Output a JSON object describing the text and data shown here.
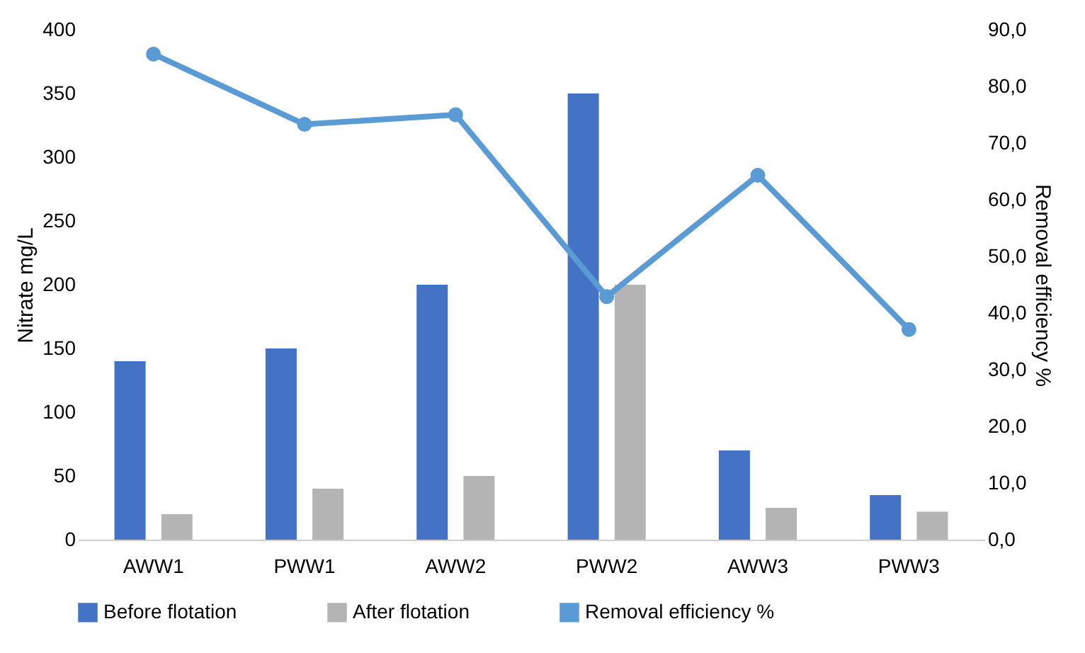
{
  "chart_data": {
    "type": "bar",
    "categories": [
      "AWW1",
      "PWW1",
      "AWW2",
      "PWW2",
      "AWW3",
      "PWW3"
    ],
    "ylabel": "Nitrate mg/L",
    "y2label": "Removal efficiency %",
    "ylim": [
      0,
      400
    ],
    "yticks": [
      0,
      50,
      100,
      150,
      200,
      250,
      300,
      350,
      400
    ],
    "y2lim": [
      0,
      90
    ],
    "y2ticks": [
      {
        "value": 0,
        "label": "0,0"
      },
      {
        "value": 10,
        "label": "10,0"
      },
      {
        "value": 20,
        "label": "20,0"
      },
      {
        "value": 30,
        "label": "30,0"
      },
      {
        "value": 40,
        "label": "40,0"
      },
      {
        "value": 50,
        "label": "50,0"
      },
      {
        "value": 60,
        "label": "60,0"
      },
      {
        "value": 70,
        "label": "70,0"
      },
      {
        "value": 80,
        "label": "80,0"
      },
      {
        "value": 90,
        "label": "90,0"
      }
    ],
    "series": [
      {
        "name": "Before flotation",
        "color": "#4472c4",
        "values": [
          140,
          150,
          200,
          350,
          70,
          35
        ]
      },
      {
        "name": "After flotation",
        "color": "#b4b4b4",
        "values": [
          20,
          40,
          50,
          200,
          25,
          22
        ]
      },
      {
        "name": "Removal efficiency %",
        "type": "line",
        "axis": "y2",
        "color": "#5b9bd5",
        "values": [
          85.7,
          73.3,
          75,
          42.9,
          64.3,
          37.1
        ]
      }
    ],
    "marker": "circle",
    "line_style": "solid",
    "grid": false,
    "legend": "bottom"
  }
}
